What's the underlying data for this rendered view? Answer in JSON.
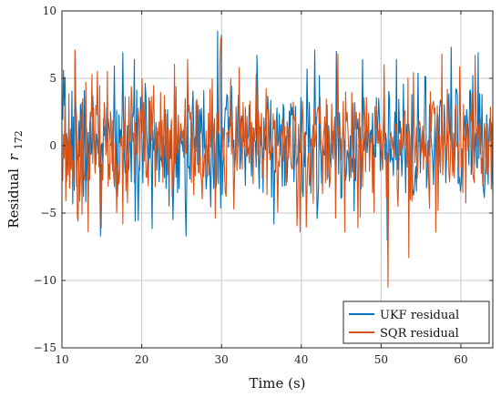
{
  "chart_data": {
    "type": "line",
    "title": "",
    "xlabel": "Time (s)",
    "ylabel_main": "Residual",
    "ylabel_var": "r",
    "ylabel_sub": "172",
    "xlim": [
      10,
      64
    ],
    "ylim": [
      -15,
      10
    ],
    "x_ticks": [
      10,
      20,
      30,
      40,
      50,
      60
    ],
    "y_ticks": [
      10,
      5,
      0,
      -5,
      -10,
      -15
    ],
    "x_tick_labels": [
      "10",
      "20",
      "30",
      "40",
      "50",
      "60"
    ],
    "y_tick_labels": [
      "10",
      "5",
      "0",
      "−5",
      "−10",
      "−15"
    ],
    "grid": true,
    "legend_position": "bottom-right",
    "series": [
      {
        "name": "UKF residual",
        "color": "#0072BD",
        "x_start": 10,
        "x_end": 64,
        "highlights": [
          [
            10.2,
            5.6
          ],
          [
            11.6,
            7.0
          ],
          [
            14.8,
            -6.7
          ],
          [
            17.6,
            6.9
          ],
          [
            19.2,
            -5.6
          ],
          [
            25.6,
            -6.7
          ],
          [
            29.5,
            8.5
          ],
          [
            30.0,
            8.2
          ],
          [
            34.4,
            6.7
          ],
          [
            41.7,
            7.1
          ],
          [
            42.0,
            -5.4
          ],
          [
            44.4,
            7.0
          ],
          [
            50.8,
            -7.0
          ],
          [
            58.8,
            7.3
          ],
          [
            62.2,
            6.9
          ]
        ]
      },
      {
        "name": "SQR residual",
        "color": "#D95319",
        "x_start": 10,
        "x_end": 64,
        "highlights": [
          [
            11.6,
            7.1
          ],
          [
            12.0,
            -5.6
          ],
          [
            17.6,
            -5.8
          ],
          [
            29.9,
            8.0
          ],
          [
            30.0,
            7.6
          ],
          [
            44.6,
            6.8
          ],
          [
            47.4,
            -5.3
          ],
          [
            50.4,
            6.0
          ],
          [
            50.9,
            -10.5
          ],
          [
            53.5,
            -8.3
          ],
          [
            57.6,
            6.8
          ],
          [
            61.8,
            6.7
          ]
        ]
      }
    ]
  }
}
